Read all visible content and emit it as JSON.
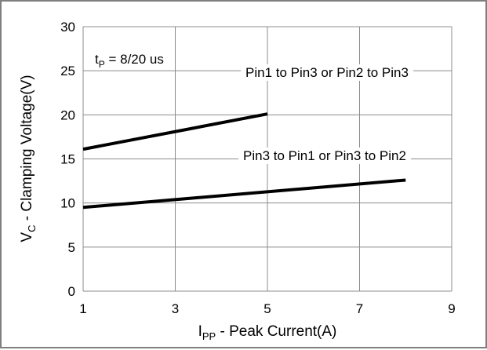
{
  "chart_data": {
    "type": "line",
    "xlabel": {
      "main": "I",
      "sub": "PP",
      "rest": " - Peak Current(A)"
    },
    "ylabel": {
      "main": "V",
      "sub": "C",
      "rest": " - Clamping Voltage(V)"
    },
    "xlim": [
      1,
      9
    ],
    "ylim": [
      0,
      30
    ],
    "xticks": [
      1,
      3,
      5,
      7,
      9
    ],
    "yticks": [
      0,
      5,
      10,
      15,
      20,
      25,
      30
    ],
    "grid": true,
    "annotation": {
      "main": "t",
      "sub": "P",
      "rest": " = 8/20 us"
    },
    "series": [
      {
        "name": "Pin1 to Pin3 or Pin2 to Pin3",
        "x": [
          1,
          5
        ],
        "y": [
          16.1,
          20.1
        ]
      },
      {
        "name": "Pin3 to Pin1 or Pin3 to Pin2",
        "x": [
          1,
          8
        ],
        "y": [
          9.5,
          12.6
        ]
      }
    ]
  }
}
